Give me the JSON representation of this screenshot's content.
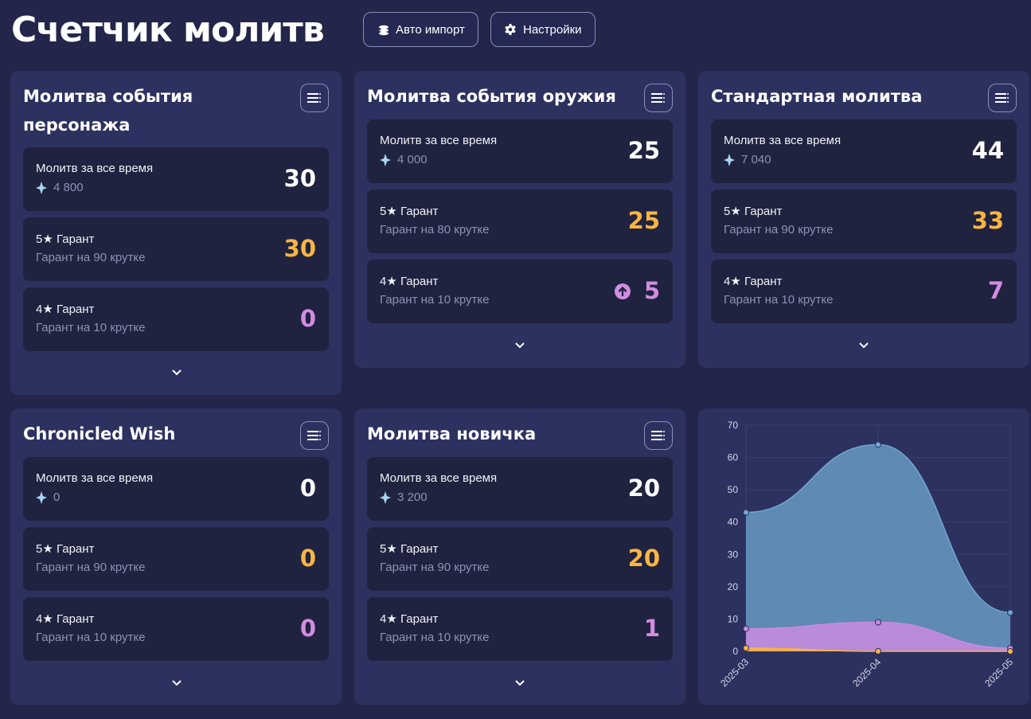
{
  "header": {
    "title": "Счетчик молитв",
    "auto_import_label": "Авто импорт",
    "settings_label": "Настройки"
  },
  "cards": [
    {
      "title": "Молитва события персонажа",
      "total": {
        "label": "Молитв за все время",
        "sub": "4 800",
        "value": "30"
      },
      "five": {
        "label": "5★ Гарант",
        "sub": "Гарант на 90 крутке",
        "value": "30"
      },
      "four": {
        "label": "4★ Гарант",
        "sub": "Гарант на 10 крутке",
        "value": "0"
      }
    },
    {
      "title": "Молитва события оружия",
      "total": {
        "label": "Молитв за все время",
        "sub": "4 000",
        "value": "25"
      },
      "five": {
        "label": "5★ Гарант",
        "sub": "Гарант на 80 крутке",
        "value": "25"
      },
      "four": {
        "label": "4★ Гарант",
        "sub": "Гарант на 10 крутке",
        "value": "5"
      }
    },
    {
      "title": "Стандартная молитва",
      "total": {
        "label": "Молитв за все время",
        "sub": "7 040",
        "value": "44"
      },
      "five": {
        "label": "5★ Гарант",
        "sub": "Гарант на 90 крутке",
        "value": "33"
      },
      "four": {
        "label": "4★ Гарант",
        "sub": "Гарант на 10 крутке",
        "value": "7"
      }
    },
    {
      "title": "Chronicled Wish",
      "total": {
        "label": "Молитв за все время",
        "sub": "0",
        "value": "0"
      },
      "five": {
        "label": "5★ Гарант",
        "sub": "Гарант на 90 крутке",
        "value": "0"
      },
      "four": {
        "label": "4★ Гарант",
        "sub": "Гарант на 10 крутке",
        "value": "0"
      }
    },
    {
      "title": "Молитва новичка",
      "total": {
        "label": "Молитв за все время",
        "sub": "3 200",
        "value": "20"
      },
      "five": {
        "label": "5★ Гарант",
        "sub": "Гарант на 90 крутке",
        "value": "20"
      },
      "four": {
        "label": "4★ Гарант",
        "sub": "Гарант на 10 крутке",
        "value": "1"
      }
    }
  ],
  "icons": {
    "header": [
      "import-icon",
      "gear-icon"
    ],
    "card": [
      "menu-icon",
      "primogem-icon",
      "chevron-down-icon",
      "arrow-up-circle-icon"
    ]
  },
  "colors": {
    "background": "#23264a",
    "card": "#2d3160",
    "row": "#20233f",
    "gold": "#f9b544",
    "purple": "#d18de0",
    "muted": "#8d92b3"
  },
  "chart_data": {
    "type": "area",
    "x": [
      "2025-03",
      "2025-04",
      "2025-05"
    ],
    "ylim": [
      0,
      70
    ],
    "yticks": [
      0,
      10,
      20,
      30,
      40,
      50,
      60,
      70
    ],
    "grid": true,
    "series": [
      {
        "values": [
          43,
          64,
          12
        ],
        "color": "#6fa8d0"
      },
      {
        "values": [
          7,
          9,
          1
        ],
        "color": "#c98be0"
      },
      {
        "values": [
          1,
          0,
          0
        ],
        "color": "#f9b544"
      }
    ]
  }
}
